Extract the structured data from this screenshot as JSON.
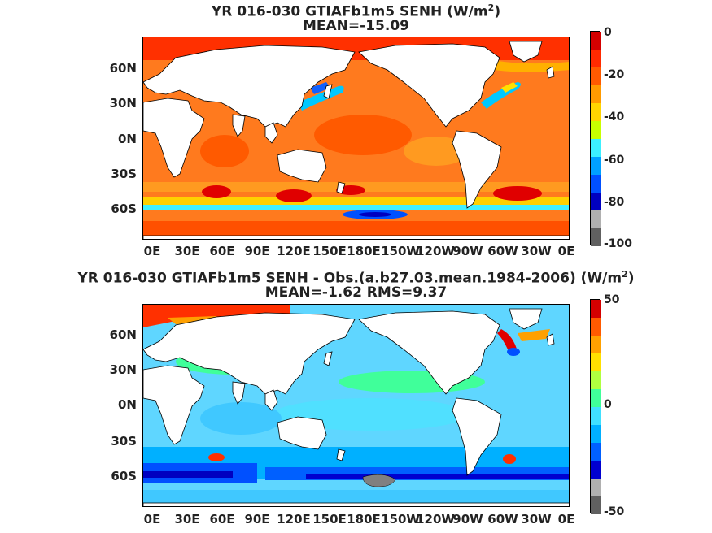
{
  "map1": {
    "title_line1": "YR 016-030 GTIAFb1m5  SENH (W/m",
    "title_sup": "2",
    "title_close": ")",
    "title_line2": "MEAN=-15.09",
    "colorbar_labels": [
      "0",
      "-20",
      "-40",
      "-60",
      "-80",
      "-100"
    ],
    "colorbar_range": [
      -100,
      0
    ],
    "colormap_stops": [
      "#d40000",
      "#ff2a00",
      "#ff5a00",
      "#ff9a00",
      "#ffd400",
      "#c8ff00",
      "#3cf0ff",
      "#00a0ff",
      "#0050ff",
      "#0000c0",
      "#b0b0b0",
      "#606060"
    ],
    "ocean_background": "#ff7a1e"
  },
  "map2": {
    "title_line1": "YR 016-030 GTIAFb1m5 SENH - Obs.(a.b27.03.mean.1984-2006) (W/m",
    "title_sup": "2",
    "title_close": ")",
    "title_line2": "MEAN=-1.62 RMS=9.37",
    "colorbar_labels": [
      "50",
      "0",
      "-50"
    ],
    "colorbar_range": [
      -50,
      50
    ],
    "colormap_stops": [
      "#d40000",
      "#ff5a00",
      "#ffa000",
      "#ffe000",
      "#b0ff40",
      "#40ff9a",
      "#40e0ff",
      "#00b0ff",
      "#0060ff",
      "#0000d0",
      "#b0b0b0",
      "#606060"
    ],
    "ocean_background": "#5fd6ff"
  },
  "axes": {
    "y_ticks": [
      "60N",
      "30N",
      "0N",
      "30S",
      "60S"
    ],
    "x_ticks": [
      "0E",
      "30E",
      "60E",
      "90E",
      "120E",
      "150E",
      "180E",
      "150W",
      "120W",
      "90W",
      "60W",
      "30W",
      "0E"
    ]
  },
  "colors": {
    "land": "#ffffff",
    "coast": "#000000"
  }
}
